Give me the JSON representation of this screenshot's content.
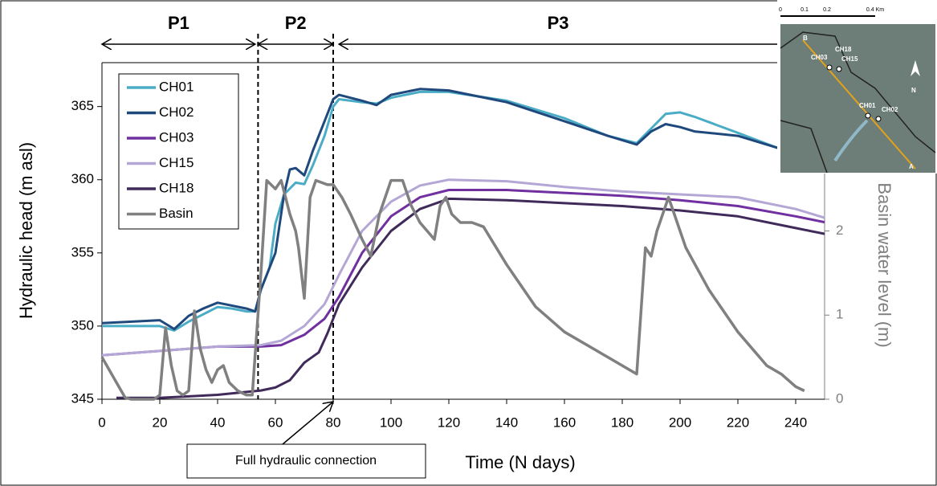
{
  "chart_data": {
    "type": "line",
    "xlabel": "Time (N days)",
    "ylabel": "Hydraulic head (m asl)",
    "y2label": "Basin water level (m)",
    "xlim": [
      0,
      250
    ],
    "xticks": [
      0,
      20,
      40,
      60,
      80,
      100,
      120,
      140,
      160,
      180,
      200,
      220,
      240
    ],
    "ylim": [
      345,
      368
    ],
    "yticks": [
      345,
      350,
      355,
      360,
      365
    ],
    "y2lim": [
      0,
      4
    ],
    "y2ticks": [
      0,
      1,
      2
    ],
    "legend": "upper left",
    "series": [
      {
        "name": "CH01",
        "color": "#4bacc6",
        "x": [
          0,
          10,
          20,
          25,
          30,
          35,
          40,
          45,
          50,
          53,
          55,
          58,
          60,
          63,
          67,
          70,
          73,
          77,
          80,
          82,
          90,
          95,
          100,
          110,
          120,
          140,
          160,
          175,
          185,
          190,
          195,
          200,
          205,
          220,
          240,
          250
        ],
        "values": [
          350,
          350,
          350,
          349.7,
          350.3,
          350.8,
          351.3,
          351.2,
          351,
          351,
          352.5,
          354,
          357,
          359,
          359.8,
          359.7,
          361,
          363,
          365,
          365.5,
          365.3,
          365.2,
          365.6,
          366,
          366,
          365.4,
          364.2,
          363,
          362.5,
          363.5,
          364.5,
          364.6,
          364.3,
          363.2,
          361.7,
          361
        ]
      },
      {
        "name": "CH02",
        "color": "#1f497d",
        "x": [
          0,
          20,
          25,
          30,
          35,
          40,
          50,
          53,
          55,
          60,
          63,
          65,
          67,
          70,
          73,
          77,
          80,
          82,
          90,
          95,
          100,
          110,
          120,
          140,
          160,
          175,
          185,
          190,
          195,
          200,
          205,
          220,
          240,
          250
        ],
        "values": [
          350.2,
          350.4,
          349.8,
          350.7,
          351.2,
          351.6,
          351.2,
          351,
          352.5,
          355,
          359,
          360.7,
          360.8,
          360.3,
          362,
          364,
          365.5,
          365.8,
          365.4,
          365.1,
          365.8,
          366.2,
          366.1,
          365.3,
          364,
          363,
          362.4,
          363.3,
          363.8,
          363.6,
          363.3,
          363,
          361.8,
          361.2
        ]
      },
      {
        "name": "CH03",
        "color": "#7030a0",
        "x": [
          0,
          20,
          40,
          55,
          62,
          70,
          77,
          82,
          90,
          100,
          110,
          120,
          140,
          160,
          180,
          200,
          220,
          240,
          250
        ],
        "values": [
          348,
          348.3,
          348.6,
          348.6,
          348.7,
          349.4,
          350.5,
          352,
          355,
          357.5,
          358.8,
          359.3,
          359.3,
          359.1,
          358.9,
          358.6,
          358.2,
          357.5,
          357.1
        ]
      },
      {
        "name": "CH15",
        "color": "#b4a7d6",
        "x": [
          0,
          20,
          40,
          55,
          62,
          70,
          77,
          82,
          90,
          100,
          110,
          120,
          140,
          160,
          180,
          200,
          220,
          240,
          250
        ],
        "values": [
          348,
          348.3,
          348.6,
          348.7,
          349,
          350,
          351.5,
          353.5,
          356.5,
          358.5,
          359.6,
          360,
          359.9,
          359.5,
          359.2,
          359,
          358.8,
          358,
          357.4
        ]
      },
      {
        "name": "CH18",
        "color": "#3f2a5a",
        "x": [
          5,
          20,
          40,
          50,
          55,
          60,
          65,
          70,
          75,
          78,
          82,
          90,
          100,
          110,
          120,
          140,
          160,
          180,
          200,
          220,
          240,
          250
        ],
        "values": [
          345.1,
          345.1,
          345.3,
          345.5,
          345.6,
          345.8,
          346.3,
          347.5,
          348.2,
          349.5,
          351.5,
          354,
          356.5,
          358,
          358.7,
          358.6,
          358.4,
          358.2,
          357.9,
          357.5,
          356.7,
          356.3
        ]
      },
      {
        "name": "Basin",
        "color": "#808080",
        "axis": "y2",
        "x": [
          0,
          5,
          8,
          10,
          18,
          20,
          22,
          24,
          26,
          28,
          30,
          32,
          34,
          36,
          38,
          40,
          42,
          44,
          47,
          50,
          52,
          55,
          57,
          60,
          62,
          65,
          67,
          68,
          70,
          72,
          74,
          78,
          80,
          83,
          86,
          90,
          93,
          96,
          98,
          100,
          104,
          107,
          110,
          115,
          117,
          119,
          121,
          124,
          128,
          132,
          140,
          150,
          160,
          170,
          180,
          185,
          188,
          190,
          192,
          196,
          198,
          202,
          210,
          220,
          230,
          235,
          240,
          243
        ],
        "values": [
          0.5,
          0.2,
          0.02,
          0,
          0,
          0.05,
          0.85,
          0.4,
          0.1,
          0.05,
          0.1,
          1.05,
          0.6,
          0.35,
          0.2,
          0.35,
          0.4,
          0.2,
          0.1,
          0.05,
          0.05,
          1.5,
          2.6,
          2.5,
          2.6,
          2.2,
          2,
          1.8,
          1.2,
          2.4,
          2.6,
          2.55,
          2.55,
          2.4,
          2.2,
          1.9,
          1.7,
          2.2,
          2.4,
          2.6,
          2.6,
          2.3,
          2.1,
          1.9,
          2.3,
          2.4,
          2.2,
          2.1,
          2.1,
          2.05,
          1.6,
          1.1,
          0.8,
          0.6,
          0.4,
          0.3,
          1.8,
          1.7,
          2,
          2.4,
          2.2,
          1.8,
          1.3,
          0.8,
          0.4,
          0.3,
          0.15,
          0.1
        ]
      }
    ],
    "periods": [
      {
        "label": "P1",
        "start": 0,
        "end": 53
      },
      {
        "label": "P2",
        "start": 54,
        "end": 80
      },
      {
        "label": "P3",
        "start": 82,
        "end": 250
      }
    ],
    "dividers": [
      54,
      80
    ],
    "annotation": {
      "text": "Full hydraulic connection",
      "x": 80
    },
    "map": {
      "scale_labels": [
        "0",
        "0.1",
        "0.2",
        "0.4 Km"
      ],
      "labels": [
        "B",
        "CH18",
        "CH03",
        "CH15",
        "CH01",
        "CH02",
        "A",
        "N"
      ]
    }
  }
}
